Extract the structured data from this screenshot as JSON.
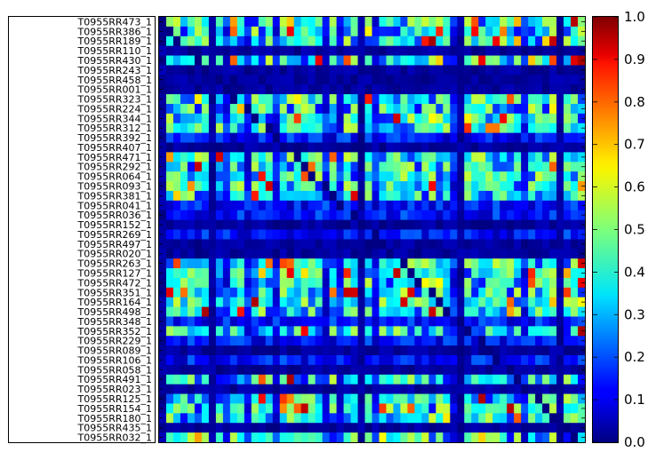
{
  "chart_data": {
    "type": "heatmap",
    "title": "",
    "xlabel": "",
    "ylabel": "",
    "colormap": "jet",
    "colorbar": {
      "min": 0.0,
      "max": 1.0,
      "ticks": [
        "0.0",
        "0.1",
        "0.2",
        "0.3",
        "0.4",
        "0.5",
        "0.6",
        "0.7",
        "0.8",
        "0.9",
        "1.0"
      ]
    },
    "row_labels": [
      "T0955RR473_1",
      "T0955RR386_1",
      "T0955RR189_1",
      "T0955RR110_1",
      "T0955RR430_1",
      "T0955RR243_1",
      "T0955RR458_1",
      "T0955RR001_1",
      "T0955RR323_1",
      "T0955RR224_1",
      "T0955RR344_1",
      "T0955RR312_1",
      "T0955RR392_1",
      "T0955RR407_1",
      "T0955RR471_1",
      "T0955RR292_1",
      "T0955RR064_1",
      "T0955RR093_1",
      "T0955RR381_1",
      "T0955RR041_1",
      "T0955RR036_1",
      "T0955RR152_1",
      "T0955RR269_1",
      "T0955RR497_1",
      "T0955RR020_1",
      "T0955RR263_1",
      "T0955RR127_1",
      "T0955RR472_1",
      "T0955RR351_1",
      "T0955RR164_1",
      "T0955RR498_1",
      "T0955RR348_1",
      "T0955RR352_1",
      "T0955RR229_1",
      "T0955RR089_1",
      "T0955RR106_1",
      "T0955RR058_1",
      "T0955RR491_1",
      "T0955RR023_1",
      "T0955RR125_1",
      "T0955RR154_1",
      "T0955RR180_1",
      "T0955RR435_1",
      "T0955RR032_1"
    ],
    "n_rows": 44,
    "n_cols": 60,
    "grid": false
  }
}
